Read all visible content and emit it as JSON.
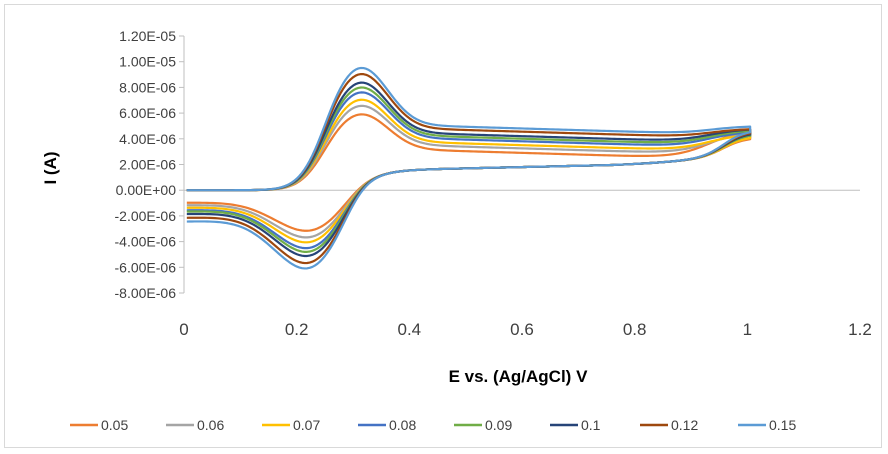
{
  "chart_data": {
    "type": "line",
    "title": "",
    "xlabel": "E vs. (Ag/AgCl) V",
    "ylabel": "I (A)",
    "xlim": [
      0,
      1.2
    ],
    "ylim": [
      -8e-06,
      1.2e-05
    ],
    "x_ticks": [
      "0",
      "0.2",
      "0.4",
      "0.6",
      "0.8",
      "1",
      "1.2"
    ],
    "y_ticks": [
      "1.20E-05",
      "1.00E-05",
      "8.00E-06",
      "6.00E-06",
      "4.00E-06",
      "2.00E-06",
      "0.00E+00",
      "-2.00E-06",
      "-4.00E-06",
      "-6.00E-06",
      "-8.00E-06"
    ],
    "grid": false,
    "legend_position": "bottom",
    "series": [
      {
        "name": "0.05",
        "color": "#ED7D31",
        "scale": 0.62,
        "end_upper": 4.7e-06,
        "end_lower": 4.1e-06,
        "start_lower": -1e-06
      },
      {
        "name": "0.06",
        "color": "#A5A5A5",
        "scale": 0.69,
        "end_upper": 4.5e-06,
        "end_lower": 4.2e-06,
        "start_lower": -1.2e-06
      },
      {
        "name": "0.07",
        "color": "#FFC000",
        "scale": 0.74,
        "end_upper": 4.4e-06,
        "end_lower": 4.2e-06,
        "start_lower": -1.4e-06
      },
      {
        "name": "0.08",
        "color": "#4472C4",
        "scale": 0.8,
        "end_upper": 4.6e-06,
        "end_lower": 4.4e-06,
        "start_lower": -1.6e-06
      },
      {
        "name": "0.09",
        "color": "#70AD47",
        "scale": 0.84,
        "end_upper": 4.7e-06,
        "end_lower": 4.4e-06,
        "start_lower": -1.7e-06
      },
      {
        "name": "0.1",
        "color": "#264478",
        "scale": 0.88,
        "end_upper": 4.8e-06,
        "end_lower": 4.5e-06,
        "start_lower": -1.9e-06
      },
      {
        "name": "0.12",
        "color": "#9E480E",
        "scale": 0.95,
        "end_upper": 4.8e-06,
        "end_lower": 4.6e-06,
        "start_lower": -2.2e-06
      },
      {
        "name": "0.15",
        "color": "#5B9BD5",
        "scale": 1.0,
        "end_upper": 5e-06,
        "end_lower": 4.7e-06,
        "start_lower": -2.5e-06
      }
    ],
    "anodic_peak_V": 0.31,
    "cathodic_peak_V": 0.23,
    "max_anodic_peak_A": 9.5e-06,
    "max_cathodic_peak_A": -6.8e-06
  }
}
